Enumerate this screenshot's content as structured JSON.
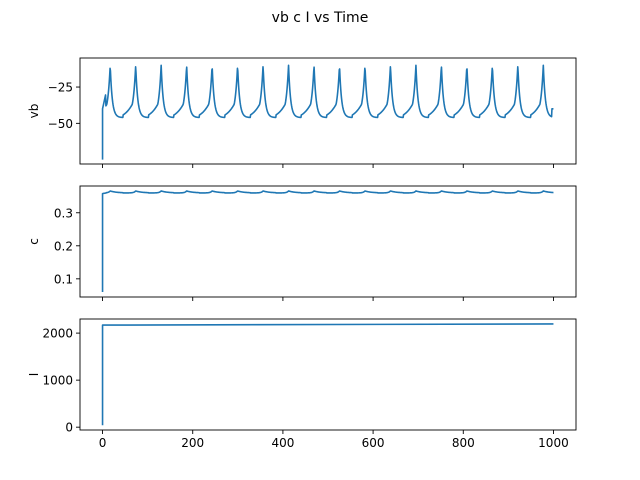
{
  "figure": {
    "title": "vb c I vs Time"
  },
  "chart_data": [
    {
      "type": "line",
      "ylabel": "vb",
      "xlim": [
        -50,
        1050
      ],
      "ylim": [
        -78,
        -5
      ],
      "xticks": [
        0,
        200,
        400,
        600,
        800,
        1000
      ],
      "yticks": [
        -50,
        -25
      ],
      "ytick_labels": [
        "−50",
        "−25"
      ],
      "show_xtick_labels": false,
      "series": [
        {
          "color": "#1f77b4",
          "model": "spiking",
          "t_start": 0,
          "t_end": 1000,
          "v_start": -75,
          "v_after_jump": -40,
          "peak": -10,
          "trough": -46,
          "period": 56.5,
          "first_peak_t": 17,
          "v_end": -40
        }
      ]
    },
    {
      "type": "line",
      "ylabel": "c",
      "xlim": [
        -50,
        1050
      ],
      "ylim": [
        0.045,
        0.381
      ],
      "xticks": [
        0,
        200,
        400,
        600,
        800,
        1000
      ],
      "yticks": [
        0.1,
        0.2,
        0.3
      ],
      "ytick_labels": [
        "0.1",
        "0.2",
        "0.3"
      ],
      "show_xtick_labels": false,
      "series": [
        {
          "color": "#1f77b4",
          "model": "oscillating",
          "t_start": 0,
          "t_end": 1000,
          "v_start": 0.06,
          "v_after_jump": 0.358,
          "base": 0.36,
          "peak": 0.366,
          "period": 56.5,
          "first_peak_t": 17
        }
      ]
    },
    {
      "type": "line",
      "ylabel": "I",
      "xlim": [
        -50,
        1050
      ],
      "ylim": [
        -60,
        2300
      ],
      "xticks": [
        0,
        200,
        400,
        600,
        800,
        1000
      ],
      "xtick_labels": [
        "0",
        "200",
        "400",
        "600",
        "800",
        "1000"
      ],
      "yticks": [
        0,
        1000,
        2000
      ],
      "ytick_labels": [
        "0",
        "1000",
        "2000"
      ],
      "show_xtick_labels": true,
      "series": [
        {
          "color": "#1f77b4",
          "model": "step-ramp",
          "t_start": 0,
          "t_end": 1000,
          "v_start": 40,
          "v_after_jump": 2170,
          "v_end": 2195
        }
      ]
    }
  ]
}
